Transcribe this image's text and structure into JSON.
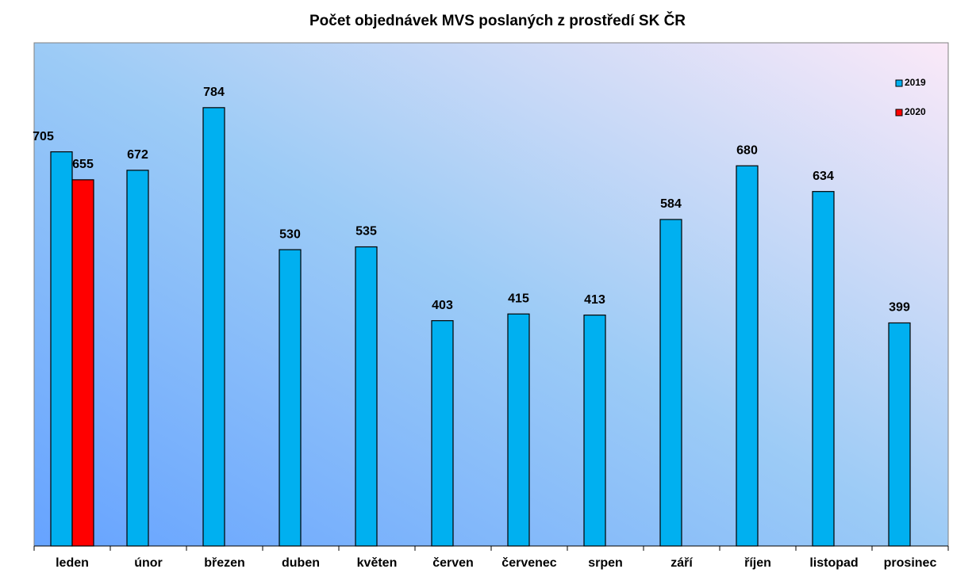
{
  "chart_data": {
    "type": "bar",
    "title": "Počet objednávek MVS poslaných z prostředí SK ČR",
    "categories": [
      "leden",
      "únor",
      "březen",
      "duben",
      "květen",
      "červen",
      "červenec",
      "srpen",
      "září",
      "říjen",
      "listopad",
      "prosinec"
    ],
    "series": [
      {
        "name": "2019",
        "color": "#00b0f0",
        "values": [
          705,
          672,
          784,
          530,
          535,
          403,
          415,
          413,
          584,
          680,
          634,
          399
        ]
      },
      {
        "name": "2020",
        "color": "#ff0000",
        "values": [
          655,
          null,
          null,
          null,
          null,
          null,
          null,
          null,
          null,
          null,
          null,
          null
        ]
      }
    ],
    "ylim": [
      0,
      900
    ],
    "legend": "top-right"
  }
}
